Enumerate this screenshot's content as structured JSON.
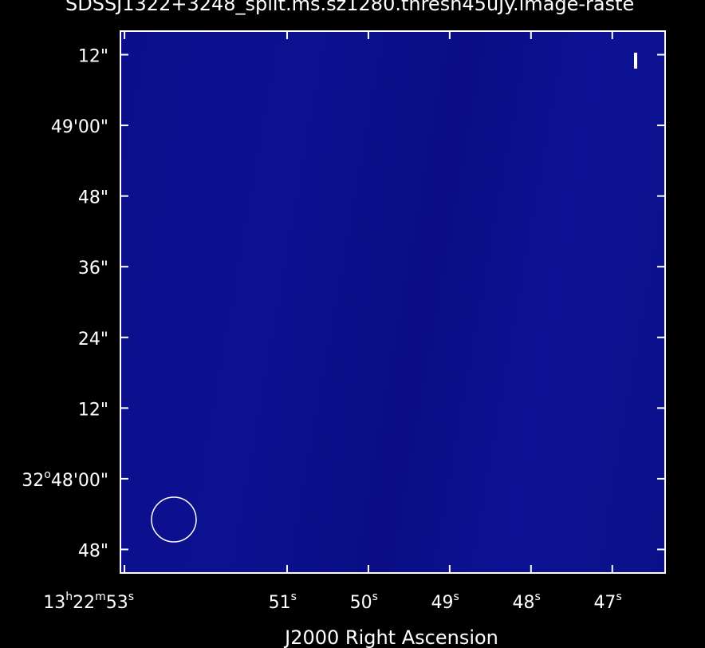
{
  "title": "SDSSJ1322+3248_split.ms.sz1280.thresh45uJy.image-raste",
  "chart_data": {
    "type": "heatmap",
    "title": "SDSSJ1322+3248_split.ms.sz1280.thresh45uJy.image-raste",
    "xlabel": "J2000 Right Ascension",
    "ylabel": "",
    "x_ticks": [
      {
        "value": 53,
        "prefix": "13",
        "h": "h",
        "mid": "22",
        "m": "m",
        "main": "53",
        "unit": "s"
      },
      {
        "value": 51,
        "prefix": "",
        "h": "",
        "mid": "",
        "m": "",
        "main": "51",
        "unit": "s"
      },
      {
        "value": 50,
        "prefix": "",
        "h": "",
        "mid": "",
        "m": "",
        "main": "50",
        "unit": "s"
      },
      {
        "value": 49,
        "prefix": "",
        "h": "",
        "mid": "",
        "m": "",
        "main": "49",
        "unit": "s"
      },
      {
        "value": 48,
        "prefix": "",
        "h": "",
        "mid": "",
        "m": "",
        "main": "48",
        "unit": "s"
      },
      {
        "value": 47,
        "prefix": "",
        "h": "",
        "mid": "",
        "m": "",
        "main": "47",
        "unit": "s"
      }
    ],
    "y_ticks": [
      {
        "value": 72,
        "label_main": "12\"",
        "deg": ""
      },
      {
        "value": 60,
        "label_main": "49'00\"",
        "deg": ""
      },
      {
        "value": 48,
        "label_main": "48\"",
        "deg": ""
      },
      {
        "value": 36,
        "label_main": "36\"",
        "deg": ""
      },
      {
        "value": 24,
        "label_main": "24\"",
        "deg": ""
      },
      {
        "value": 12,
        "label_main": "12\"",
        "deg": ""
      },
      {
        "value": 0,
        "label_main": "48'00\"",
        "deg": "32"
      },
      {
        "value": -12,
        "label_main": "48\"",
        "deg": ""
      }
    ],
    "x_range": [
      53.05,
      46.35
    ],
    "y_range": [
      -16.0,
      76.0
    ],
    "beam": "circle",
    "colors": {
      "background": "#000000",
      "image": "#0b0f8c",
      "frame": "#ffffff"
    }
  }
}
